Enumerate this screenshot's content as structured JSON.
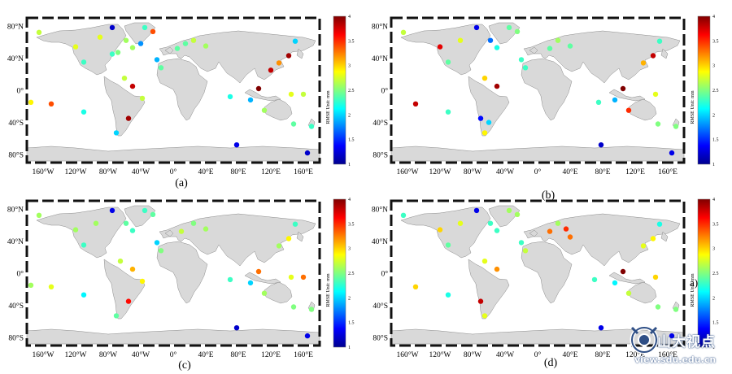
{
  "chart_data": {
    "type": "scatter",
    "map": "world",
    "x_ticks": [
      "160°W",
      "120°W",
      "80°W",
      "40°W",
      "0°",
      "40°E",
      "80°E",
      "120°E",
      "160°E"
    ],
    "x_tick_values": [
      -160,
      -120,
      -80,
      -40,
      0,
      40,
      80,
      120,
      160
    ],
    "y_ticks": [
      "80°N",
      "40°N",
      "0°",
      "40°S",
      "80°S"
    ],
    "y_tick_values": [
      80,
      40,
      0,
      -40,
      -80
    ],
    "xlim": [
      -180,
      180
    ],
    "ylim": [
      -90,
      90
    ],
    "colorbar": {
      "label": "RMSE   Unit: mm",
      "range": [
        1,
        4
      ],
      "ticks": [
        "1",
        "1.5",
        "2",
        "2.5",
        "3",
        "3.5",
        "4"
      ],
      "tick_values": [
        1,
        1.5,
        2,
        2.5,
        3,
        3.5,
        4
      ],
      "colormap": "jet"
    },
    "panels": [
      {
        "label": "(a)",
        "points": [
          [
            -165,
            72,
            2.7
          ],
          [
            -175,
            -15,
            2.9
          ],
          [
            -150,
            -17,
            3.4
          ],
          [
            -120,
            54,
            2.8
          ],
          [
            -110,
            35,
            2.3
          ],
          [
            -110,
            -27,
            2.2
          ],
          [
            -90,
            66,
            2.8
          ],
          [
            -75,
            78,
            1.2
          ],
          [
            -68,
            47,
            2.5
          ],
          [
            -75,
            45,
            2.3
          ],
          [
            -58,
            62,
            2.6
          ],
          [
            -50,
            53,
            2.6
          ],
          [
            -40,
            58,
            1.8
          ],
          [
            -35,
            78,
            2.3
          ],
          [
            -25,
            73,
            3.4
          ],
          [
            -60,
            15,
            2.7
          ],
          [
            -50,
            5,
            3.8
          ],
          [
            -38,
            -10,
            2.7
          ],
          [
            -55,
            -35,
            3.9
          ],
          [
            -70,
            -53,
            2.0
          ],
          [
            -20,
            38,
            1.9
          ],
          [
            -15,
            28,
            2.4
          ],
          [
            5,
            52,
            2.4
          ],
          [
            15,
            58,
            2.4
          ],
          [
            25,
            62,
            2.7
          ],
          [
            40,
            55,
            2.6
          ],
          [
            70,
            -8,
            2.2
          ],
          [
            78,
            -68,
            1.3
          ],
          [
            95,
            -12,
            1.9
          ],
          [
            105,
            2,
            4.0
          ],
          [
            112,
            -25,
            2.6
          ],
          [
            120,
            25,
            3.8
          ],
          [
            130,
            34,
            3.2
          ],
          [
            142,
            43,
            3.9
          ],
          [
            150,
            61,
            2.0
          ],
          [
            145,
            -5,
            2.8
          ],
          [
            148,
            -42,
            2.4
          ],
          [
            160,
            -5,
            2.7
          ],
          [
            170,
            -45,
            2.3
          ],
          [
            165,
            -78,
            1.2
          ]
        ]
      },
      {
        "label": "(b)",
        "points": [
          [
            -165,
            72,
            2.7
          ],
          [
            -150,
            -17,
            3.8
          ],
          [
            -120,
            54,
            3.7
          ],
          [
            -110,
            35,
            2.4
          ],
          [
            -110,
            -27,
            2.3
          ],
          [
            -95,
            62,
            2.8
          ],
          [
            -75,
            78,
            1.3
          ],
          [
            -58,
            62,
            1.7
          ],
          [
            -50,
            53,
            2.2
          ],
          [
            -35,
            78,
            2.4
          ],
          [
            -25,
            73,
            2.5
          ],
          [
            -65,
            15,
            3.0
          ],
          [
            -50,
            5,
            3.9
          ],
          [
            -70,
            -35,
            1.4
          ],
          [
            -60,
            -40,
            2.0
          ],
          [
            -65,
            -53,
            2.9
          ],
          [
            -20,
            38,
            2.3
          ],
          [
            -15,
            28,
            2.3
          ],
          [
            15,
            52,
            2.4
          ],
          [
            25,
            62,
            2.6
          ],
          [
            40,
            55,
            2.4
          ],
          [
            75,
            -15,
            2.3
          ],
          [
            78,
            -68,
            1.2
          ],
          [
            95,
            -12,
            1.9
          ],
          [
            105,
            2,
            4.0
          ],
          [
            112,
            -25,
            3.5
          ],
          [
            130,
            34,
            3.1
          ],
          [
            142,
            43,
            3.8
          ],
          [
            150,
            61,
            2.3
          ],
          [
            145,
            -5,
            2.8
          ],
          [
            148,
            -42,
            2.5
          ],
          [
            170,
            -45,
            2.5
          ],
          [
            165,
            -78,
            1.3
          ]
        ]
      },
      {
        "label": "(c)",
        "points": [
          [
            -165,
            72,
            2.6
          ],
          [
            -175,
            -15,
            2.6
          ],
          [
            -150,
            -17,
            2.8
          ],
          [
            -120,
            54,
            2.6
          ],
          [
            -110,
            35,
            2.3
          ],
          [
            -110,
            -27,
            2.1
          ],
          [
            -95,
            62,
            2.6
          ],
          [
            -75,
            78,
            1.3
          ],
          [
            -58,
            62,
            2.4
          ],
          [
            -50,
            53,
            2.3
          ],
          [
            -35,
            78,
            2.3
          ],
          [
            -25,
            73,
            2.4
          ],
          [
            -65,
            15,
            2.7
          ],
          [
            -50,
            5,
            3.1
          ],
          [
            -38,
            -10,
            2.9
          ],
          [
            -55,
            -35,
            3.6
          ],
          [
            -70,
            -53,
            2.4
          ],
          [
            -20,
            38,
            2.0
          ],
          [
            -15,
            28,
            2.5
          ],
          [
            10,
            52,
            2.7
          ],
          [
            25,
            62,
            2.5
          ],
          [
            40,
            55,
            2.6
          ],
          [
            70,
            -8,
            2.3
          ],
          [
            78,
            -68,
            1.2
          ],
          [
            95,
            -12,
            2.0
          ],
          [
            105,
            2,
            3.3
          ],
          [
            112,
            -25,
            2.6
          ],
          [
            130,
            34,
            2.6
          ],
          [
            142,
            43,
            2.9
          ],
          [
            150,
            61,
            2.3
          ],
          [
            145,
            -5,
            2.8
          ],
          [
            148,
            -42,
            2.5
          ],
          [
            160,
            -5,
            3.3
          ],
          [
            170,
            -45,
            2.5
          ],
          [
            165,
            -78,
            1.3
          ]
        ]
      },
      {
        "label": "(d)",
        "points": [
          [
            -165,
            72,
            2.3
          ],
          [
            -150,
            -17,
            3.0
          ],
          [
            -120,
            54,
            3.0
          ],
          [
            -110,
            35,
            2.4
          ],
          [
            -110,
            -27,
            2.2
          ],
          [
            -95,
            62,
            2.8
          ],
          [
            -75,
            78,
            1.3
          ],
          [
            -58,
            62,
            2.3
          ],
          [
            -50,
            53,
            2.3
          ],
          [
            -35,
            78,
            2.6
          ],
          [
            -25,
            73,
            2.6
          ],
          [
            -65,
            15,
            2.8
          ],
          [
            -50,
            5,
            3.2
          ],
          [
            -70,
            -35,
            3.8
          ],
          [
            -65,
            -53,
            2.8
          ],
          [
            -20,
            38,
            2.3
          ],
          [
            -15,
            28,
            2.7
          ],
          [
            15,
            52,
            3.3
          ],
          [
            25,
            62,
            2.6
          ],
          [
            35,
            55,
            3.5
          ],
          [
            40,
            45,
            3.3
          ],
          [
            70,
            -8,
            2.3
          ],
          [
            78,
            -68,
            1.3
          ],
          [
            95,
            -12,
            2.1
          ],
          [
            105,
            2,
            4.0
          ],
          [
            112,
            -25,
            2.7
          ],
          [
            130,
            34,
            2.8
          ],
          [
            142,
            43,
            2.9
          ],
          [
            150,
            61,
            2.2
          ],
          [
            145,
            -5,
            3.0
          ],
          [
            148,
            -42,
            2.5
          ],
          [
            170,
            -45,
            2.5
          ],
          [
            165,
            -78,
            1.3
          ]
        ]
      }
    ]
  },
  "watermark": {
    "name": "山大视点",
    "url": "view.sdu.edu.cn"
  },
  "stray_label": "a)"
}
